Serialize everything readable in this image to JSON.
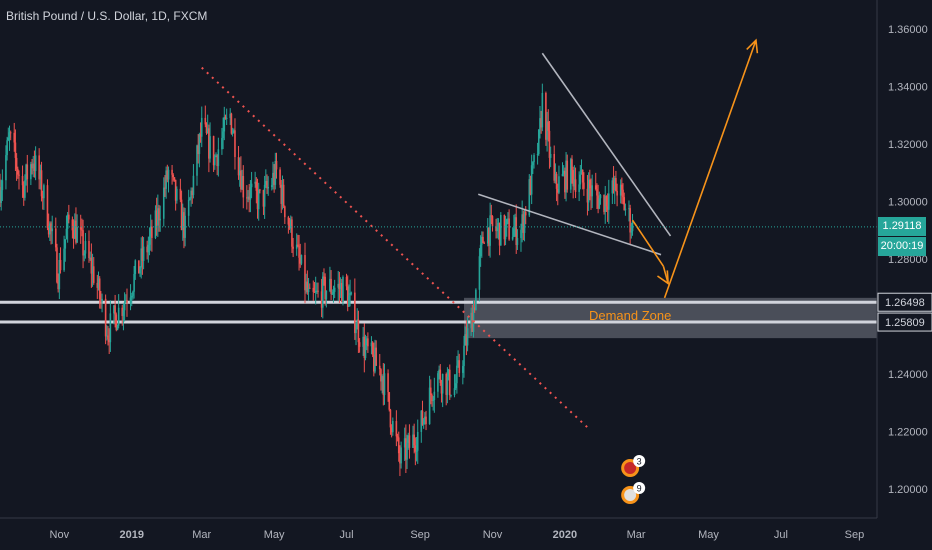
{
  "header": {
    "title": "British Pound / U.S. Dollar, 1D, FXCM"
  },
  "price_axis": {
    "ticks": [
      "1.36000",
      "1.34000",
      "1.32000",
      "1.30000",
      "1.28000",
      "1.24000",
      "1.22000",
      "1.20000"
    ],
    "current_price": "1.29118",
    "countdown": "20:00:19",
    "level_labels": [
      "1.26498",
      "1.25809"
    ]
  },
  "time_axis": {
    "ticks": [
      "Nov",
      "2019",
      "Mar",
      "May",
      "Jul",
      "Sep",
      "Nov",
      "2020",
      "Mar",
      "May",
      "Jul",
      "Sep"
    ]
  },
  "annotations": {
    "demand_zone": "Demand Zone",
    "event_badges": [
      "3",
      "9"
    ]
  },
  "colors": {
    "background": "#131722",
    "up": "#26a69a",
    "down": "#ef5350",
    "zone": "#787b86",
    "arrow": "#f7931a",
    "trendline": "#ef5350",
    "wedge": "#b2b5be",
    "price_line": "#26a69a"
  },
  "chart_data": {
    "type": "candlestick",
    "title": "British Pound / U.S. Dollar, 1D, FXCM",
    "ylim": [
      1.19,
      1.37
    ],
    "xlim": [
      "2018-09-12",
      "2020-09-20"
    ],
    "current_price": 1.29118,
    "levels": [
      1.26498,
      1.25809
    ],
    "close_path": [
      [
        "2018-09-12",
        1.305
      ],
      [
        "2018-09-20",
        1.322
      ],
      [
        "2018-10-01",
        1.305
      ],
      [
        "2018-10-10",
        1.315
      ],
      [
        "2018-10-20",
        1.3
      ],
      [
        "2018-10-31",
        1.275
      ],
      [
        "2018-11-10",
        1.295
      ],
      [
        "2018-11-20",
        1.285
      ],
      [
        "2018-11-30",
        1.275
      ],
      [
        "2018-12-12",
        1.255
      ],
      [
        "2018-12-25",
        1.265
      ],
      [
        "2019-01-05",
        1.275
      ],
      [
        "2019-01-20",
        1.29
      ],
      [
        "2019-02-01",
        1.31
      ],
      [
        "2019-02-15",
        1.29
      ],
      [
        "2019-03-01",
        1.325
      ],
      [
        "2019-03-12",
        1.315
      ],
      [
        "2019-03-25",
        1.33
      ],
      [
        "2019-04-05",
        1.305
      ],
      [
        "2019-04-20",
        1.3
      ],
      [
        "2019-05-03",
        1.31
      ],
      [
        "2019-05-15",
        1.29
      ],
      [
        "2019-05-31",
        1.265
      ],
      [
        "2019-06-15",
        1.27
      ],
      [
        "2019-06-30",
        1.27
      ],
      [
        "2019-07-15",
        1.25
      ],
      [
        "2019-07-31",
        1.24
      ],
      [
        "2019-08-15",
        1.21
      ],
      [
        "2019-08-31",
        1.22
      ],
      [
        "2019-09-15",
        1.24
      ],
      [
        "2019-09-30",
        1.235
      ],
      [
        "2019-10-15",
        1.26
      ],
      [
        "2019-10-25",
        1.29
      ],
      [
        "2019-11-10",
        1.29
      ],
      [
        "2019-11-25",
        1.29
      ],
      [
        "2019-12-10",
        1.32
      ],
      [
        "2019-12-13",
        1.335
      ],
      [
        "2019-12-23",
        1.305
      ],
      [
        "2020-01-05",
        1.31
      ],
      [
        "2020-01-20",
        1.305
      ],
      [
        "2020-02-01",
        1.3
      ],
      [
        "2020-02-14",
        1.305
      ],
      [
        "2020-02-27",
        1.29118
      ]
    ],
    "trendline_dashed": [
      [
        "2019-03-01",
        1.3465
      ],
      [
        "2020-01-20",
        1.2215
      ]
    ],
    "wedge_upper": [
      [
        "2019-12-13",
        1.3515
      ],
      [
        "2020-03-30",
        1.288
      ]
    ],
    "wedge_lower": [
      [
        "2019-10-20",
        1.3025
      ],
      [
        "2020-03-22",
        1.2815
      ]
    ],
    "arrow_down": [
      [
        "2020-02-27",
        1.2935
      ],
      [
        "2020-03-24",
        1.2775
      ]
    ],
    "arrow_up": [
      [
        "2020-03-25",
        1.2665
      ],
      [
        "2020-06-10",
        1.356
      ]
    ],
    "demand_zone": [
      1.2525,
      1.2665
    ]
  }
}
